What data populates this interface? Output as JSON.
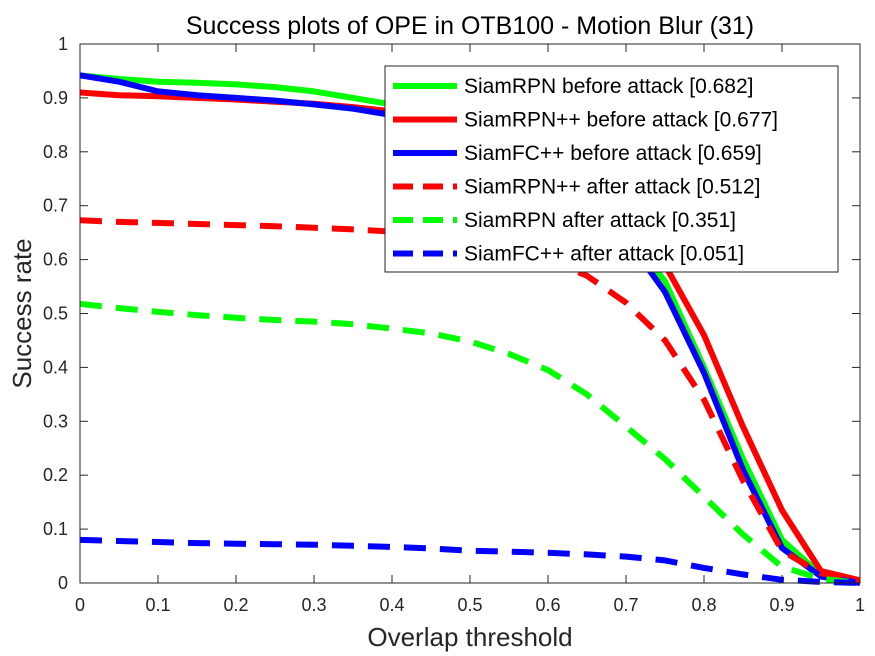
{
  "chart_data": {
    "type": "line",
    "title": "Success plots of OPE in OTB100 - Motion Blur (31)",
    "xlabel": "Overlap threshold",
    "ylabel": "Success rate",
    "xlim": [
      0,
      1
    ],
    "ylim": [
      0,
      1
    ],
    "xticks": [
      0,
      0.1,
      0.2,
      0.3,
      0.4,
      0.5,
      0.6,
      0.7,
      0.8,
      0.9,
      1
    ],
    "xtick_labels": [
      "0",
      "0.1",
      "0.2",
      "0.3",
      "0.4",
      "0.5",
      "0.6",
      "0.7",
      "0.8",
      "0.9",
      "1"
    ],
    "yticks": [
      0,
      0.1,
      0.2,
      0.3,
      0.4,
      0.5,
      0.6,
      0.7,
      0.8,
      0.9,
      1
    ],
    "ytick_labels": [
      "0",
      "0.1",
      "0.2",
      "0.3",
      "0.4",
      "0.5",
      "0.6",
      "0.7",
      "0.8",
      "0.9",
      "1"
    ],
    "grid": false,
    "legend_position": "top-right",
    "x": [
      0,
      0.05,
      0.1,
      0.15,
      0.2,
      0.25,
      0.3,
      0.35,
      0.4,
      0.45,
      0.5,
      0.55,
      0.6,
      0.65,
      0.7,
      0.75,
      0.8,
      0.85,
      0.9,
      0.95,
      1
    ],
    "series": [
      {
        "name": "SiamRPN before attack [0.682]",
        "color": "#00ff00",
        "dash": "solid",
        "values": [
          0.942,
          0.935,
          0.93,
          0.928,
          0.925,
          0.92,
          0.912,
          0.9,
          0.888,
          0.87,
          0.85,
          0.82,
          0.78,
          0.72,
          0.65,
          0.56,
          0.4,
          0.23,
          0.08,
          0.015,
          0.0
        ]
      },
      {
        "name": "SiamRPN++ before attack [0.677]",
        "color": "#ff0000",
        "dash": "solid",
        "values": [
          0.91,
          0.905,
          0.903,
          0.9,
          0.897,
          0.893,
          0.889,
          0.883,
          0.875,
          0.865,
          0.85,
          0.825,
          0.79,
          0.74,
          0.68,
          0.59,
          0.46,
          0.29,
          0.135,
          0.022,
          0.005
        ]
      },
      {
        "name": "SiamFC++ before attack [0.659]",
        "color": "#0000ff",
        "dash": "solid",
        "values": [
          0.942,
          0.93,
          0.912,
          0.905,
          0.9,
          0.895,
          0.888,
          0.88,
          0.868,
          0.85,
          0.83,
          0.8,
          0.76,
          0.71,
          0.64,
          0.54,
          0.39,
          0.21,
          0.065,
          0.012,
          0.0
        ]
      },
      {
        "name": "SiamRPN++ after attack [0.512]",
        "color": "#ff0000",
        "dash": "dashed",
        "values": [
          0.673,
          0.67,
          0.668,
          0.666,
          0.664,
          0.662,
          0.659,
          0.656,
          0.652,
          0.645,
          0.635,
          0.62,
          0.6,
          0.57,
          0.52,
          0.45,
          0.34,
          0.19,
          0.06,
          0.018,
          0.005
        ]
      },
      {
        "name": "SiamRPN after attack [0.351]",
        "color": "#00ff00",
        "dash": "dashed",
        "values": [
          0.518,
          0.51,
          0.503,
          0.497,
          0.492,
          0.488,
          0.485,
          0.48,
          0.472,
          0.463,
          0.448,
          0.425,
          0.395,
          0.35,
          0.29,
          0.23,
          0.16,
          0.09,
          0.03,
          0.008,
          0.0
        ]
      },
      {
        "name": "SiamFC++ after attack [0.051]",
        "color": "#0000ff",
        "dash": "dashed",
        "values": [
          0.08,
          0.078,
          0.076,
          0.074,
          0.073,
          0.072,
          0.071,
          0.069,
          0.067,
          0.064,
          0.06,
          0.058,
          0.056,
          0.053,
          0.049,
          0.042,
          0.028,
          0.016,
          0.006,
          0.002,
          0.0
        ]
      }
    ]
  }
}
